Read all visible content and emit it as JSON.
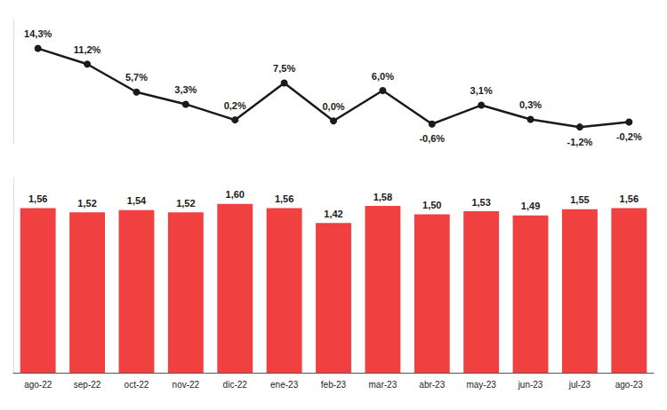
{
  "chart_data": [
    {
      "type": "line",
      "categories": [
        "ago-22",
        "sep-22",
        "oct-22",
        "nov-22",
        "dic-22",
        "ene-23",
        "feb-23",
        "mar-23",
        "abr-23",
        "may-23",
        "jun-23",
        "jul-23",
        "ago-23"
      ],
      "values": [
        14.3,
        11.2,
        5.7,
        3.3,
        0.2,
        7.5,
        0.0,
        6.0,
        -0.6,
        3.1,
        0.3,
        -1.2,
        -0.2
      ],
      "value_labels": [
        "14,3%",
        "11,2%",
        "5,7%",
        "3,3%",
        "0,2%",
        "7,5%",
        "0,0%",
        "6,0%",
        "-0,6%",
        "3,1%",
        "0,3%",
        "-1,2%",
        "-0,2%"
      ],
      "color": "#1a1a1a",
      "ylim": [
        -4.5,
        20.0
      ],
      "data_labels": true,
      "tick_labels": false,
      "grid": false
    },
    {
      "type": "bar",
      "categories": [
        "ago-22",
        "sep-22",
        "oct-22",
        "nov-22",
        "dic-22",
        "ene-23",
        "feb-23",
        "mar-23",
        "abr-23",
        "may-23",
        "jun-23",
        "jul-23",
        "ago-23"
      ],
      "values": [
        1.56,
        1.52,
        1.54,
        1.52,
        1.6,
        1.56,
        1.42,
        1.58,
        1.5,
        1.53,
        1.49,
        1.55,
        1.56
      ],
      "value_labels": [
        "1,56",
        "1,52",
        "1,54",
        "1,52",
        "1,60",
        "1,56",
        "1,42",
        "1,58",
        "1,50",
        "1,53",
        "1,49",
        "1,55",
        "1,56"
      ],
      "color": "#f04040",
      "ylim": [
        0.0,
        1.85
      ],
      "data_labels": true,
      "tick_labels": "x",
      "grid": false
    }
  ]
}
